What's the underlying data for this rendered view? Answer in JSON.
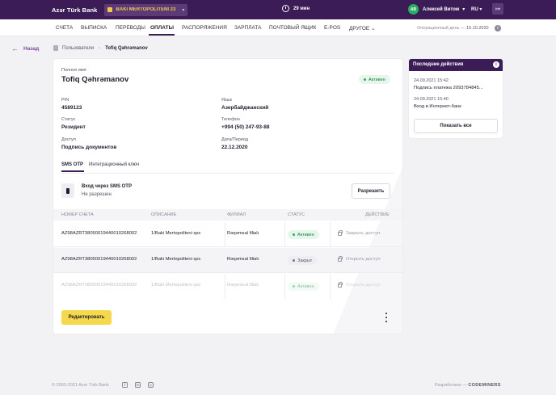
{
  "colors": {
    "topbar": "#3b1c57",
    "accent": "#7b4ba3",
    "primary_button": "#f6d84c",
    "active_badge": "#27ae60"
  },
  "topbar": {
    "logo": "Azər Türk Bank",
    "company": "BAKI MERTOPOLITENI 23",
    "timer": "29 мин",
    "avatar_initials": "АВ",
    "user_name": "Алексей Витом",
    "language": "RU",
    "logout_icon": "logout-icon"
  },
  "nav": {
    "items": [
      "СЧЕТА",
      "ВЫПИСКА",
      "ПЕРЕВОДЫ",
      "ОПЛАТЫ",
      "РАСПОРЯЖЕНИЯ",
      "ЗАРПЛАТА",
      "ПОЧТОВЫЙ ЯЩИК",
      "E-POS",
      "ДРУГОЕ"
    ],
    "active": "ОПЛАТЫ",
    "opday_label": "Операционный день —",
    "opday_date": "15.10.2020"
  },
  "back": "Назад",
  "breadcrumb": {
    "parent": "Пользователи",
    "current": "Tofiq Qəhrəmanov"
  },
  "profile": {
    "full_name_label": "Полное имя",
    "full_name": "Tofiq Qəhrəmanov",
    "status_badge": "Активен",
    "pin_label": "PIN",
    "pin": "4589123",
    "language_label": "Язык",
    "language": "Азербайджанский",
    "status_label": "Статус",
    "status": "Резидент",
    "phone_label": "Телефон",
    "phone": "+994 (50) 247-93-88",
    "access_label": "Доступ",
    "access": "Подпись документов",
    "date_label": "Дата/Период",
    "date": "22.12.2020"
  },
  "tabs": [
    "SMS OTP",
    "Интеграционный ключ"
  ],
  "sms": {
    "title": "Вход через SMS OTP",
    "subtitle": "Не разрешен",
    "allow_button": "Разрешить"
  },
  "table": {
    "headers": [
      "НОМЕР СЧЕТА",
      "ОПИСАНИЕ",
      "ФИЛИАЛ",
      "СТАТУС",
      "ДЕЙСТВИЕ"
    ],
    "rows": [
      {
        "account": "AZ98AZRT38050019440010268002",
        "description": "1/Baki Mertopoliteni qsc",
        "branch": "Rəqəmsal filialı",
        "status": "Активен",
        "action": "Закрыть доступ"
      },
      {
        "account": "AZ98AZRT38050019440010268002",
        "description": "1/Baki Mertopoliteni qsc",
        "branch": "Rəqəmsal filialı",
        "status": "Закрыт",
        "action": "Открыть доступ"
      },
      {
        "account": "AZ98AZRT38050019440010268002",
        "description": "1/Baki Mertopoliteni qsc",
        "branch": "Rəqəmsal filialı",
        "status": "Активен",
        "action": "Открыть доступ"
      }
    ]
  },
  "edit_button": "Редактировать",
  "recent": {
    "title": "Последние действия",
    "items": [
      {
        "date": "24.09.2021 15:42",
        "text": "Подпись платежа 2093784845..."
      },
      {
        "date": "24.09.2021 15:40",
        "text": "Вход в Интернет-банк"
      }
    ],
    "show_all": "Показать все"
  },
  "footer": {
    "copyright": "© 2003-2021 Azər Türk Bank",
    "made_by": "Разработано —",
    "made_by_company": "CODEMINERS"
  }
}
